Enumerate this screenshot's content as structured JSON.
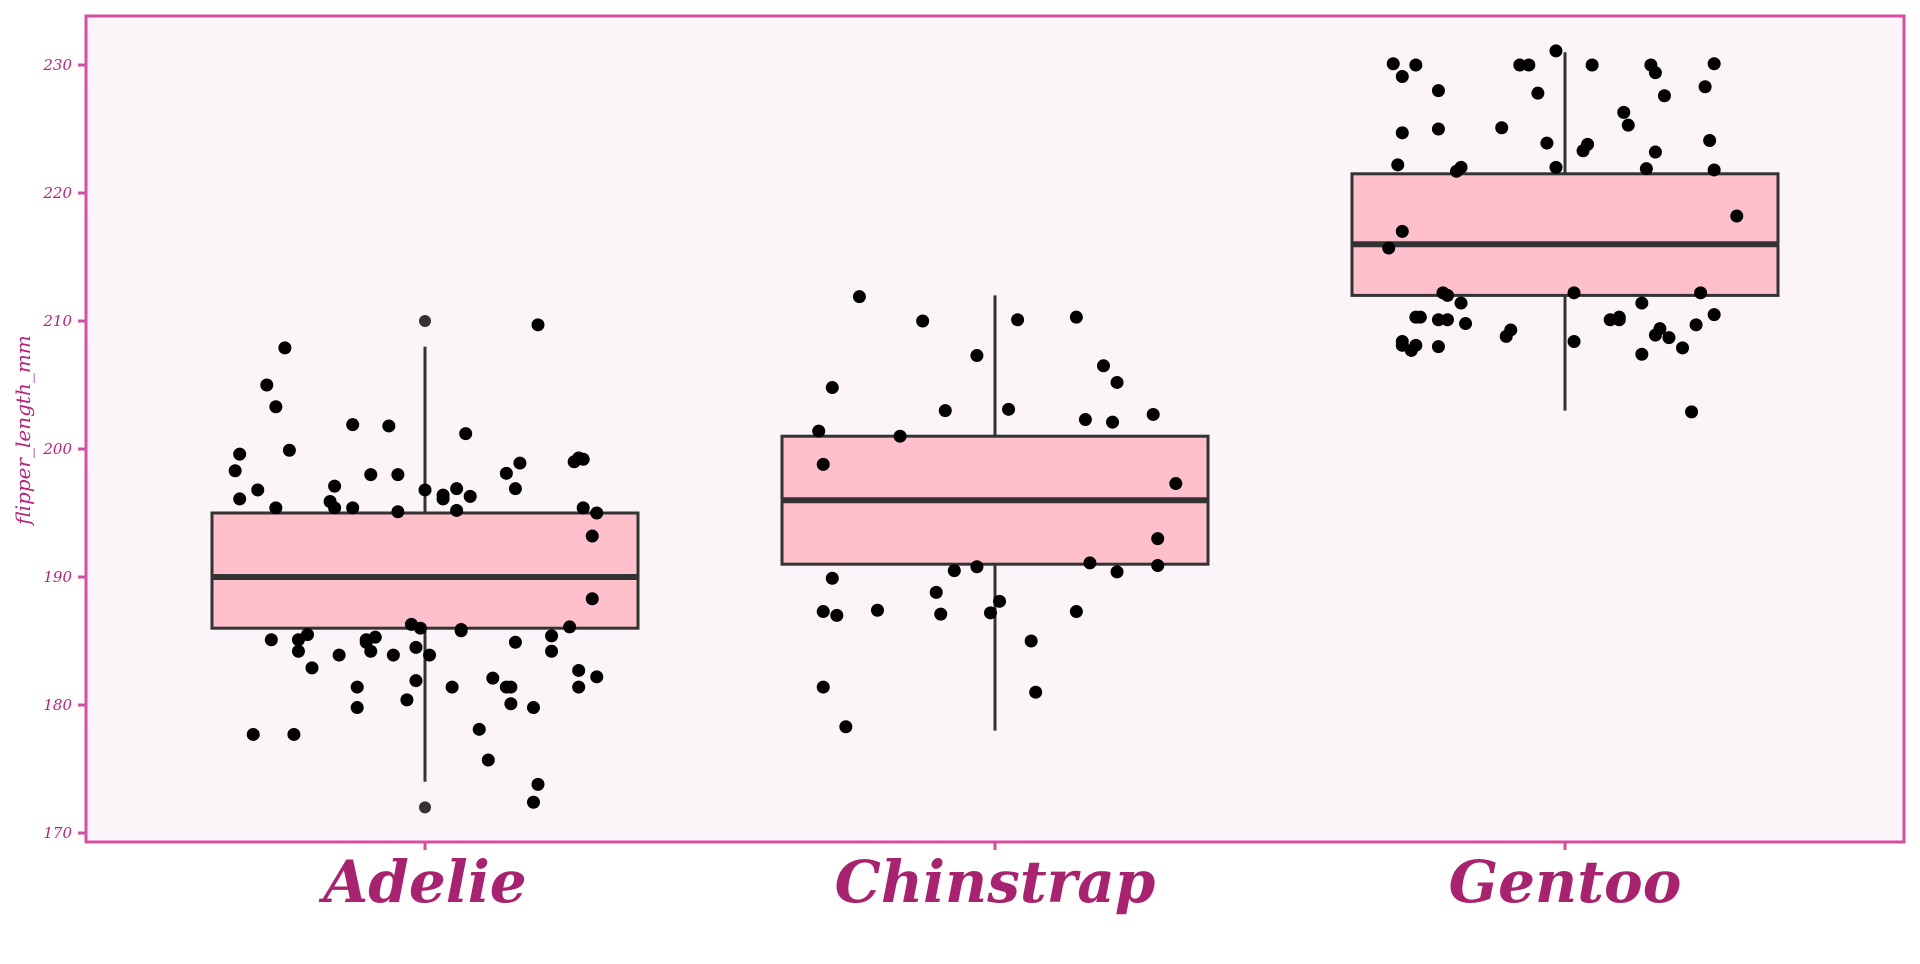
{
  "chart_data": {
    "type": "box",
    "ylabel": "flipper_length_mm",
    "xlabel": "",
    "title": "",
    "ylim": [
      169,
      234
    ],
    "yticks": [
      170,
      180,
      190,
      200,
      210,
      220,
      230
    ],
    "categories": [
      "Adelie",
      "Chinstrap",
      "Gentoo"
    ],
    "grid": false,
    "legend": "none",
    "colors": {
      "background": "#fbf4f9",
      "frame": "#d64ea1",
      "box_fill": "#ffc0cb",
      "box_line": "#333333",
      "points": "#000000",
      "tick_text": "#b5237a",
      "category_text": "#a8236f"
    },
    "boxes": [
      {
        "category": "Adelie",
        "whisker_low": 174,
        "q1": 186,
        "median": 190,
        "q3": 195,
        "whisker_high": 208,
        "outliers": [
          210,
          172
        ]
      },
      {
        "category": "Chinstrap",
        "whisker_low": 178,
        "q1": 191,
        "median": 196,
        "q3": 201,
        "whisker_high": 212,
        "outliers": []
      },
      {
        "category": "Gentoo",
        "whisker_low": 203,
        "q1": 212,
        "median": 216,
        "q3": 221.5,
        "whisker_high": 231,
        "outliers": []
      }
    ],
    "points": {
      "Adelie": [
        [
          -0.42,
          198.3
        ],
        [
          -0.41,
          199.6
        ],
        [
          -0.41,
          196.1
        ],
        [
          -0.38,
          177.7
        ],
        [
          -0.37,
          196.8
        ],
        [
          -0.35,
          205.0
        ],
        [
          -0.34,
          185.1
        ],
        [
          -0.33,
          203.3
        ],
        [
          -0.33,
          195.4
        ],
        [
          -0.31,
          207.9
        ],
        [
          -0.3,
          199.9
        ],
        [
          -0.29,
          177.7
        ],
        [
          -0.28,
          185.1
        ],
        [
          -0.28,
          184.2
        ],
        [
          -0.26,
          185.5
        ],
        [
          -0.25,
          182.9
        ],
        [
          -0.21,
          195.9
        ],
        [
          -0.2,
          197.1
        ],
        [
          -0.2,
          195.4
        ],
        [
          -0.19,
          183.9
        ],
        [
          -0.16,
          195.4
        ],
        [
          -0.16,
          201.9
        ],
        [
          -0.15,
          181.4
        ],
        [
          -0.15,
          179.8
        ],
        [
          -0.13,
          185.1
        ],
        [
          -0.13,
          184.9
        ],
        [
          -0.12,
          198.0
        ],
        [
          -0.12,
          184.2
        ],
        [
          -0.11,
          185.3
        ],
        [
          -0.08,
          201.8
        ],
        [
          -0.07,
          183.9
        ],
        [
          -0.06,
          198.0
        ],
        [
          -0.06,
          195.1
        ],
        [
          -0.04,
          180.4
        ],
        [
          -0.03,
          186.3
        ],
        [
          -0.02,
          181.9
        ],
        [
          -0.02,
          184.5
        ],
        [
          -0.01,
          186.0
        ],
        [
          0.0,
          196.8
        ],
        [
          0.01,
          183.9
        ],
        [
          0.04,
          196.4
        ],
        [
          0.04,
          196.1
        ],
        [
          0.06,
          181.4
        ],
        [
          0.07,
          196.9
        ],
        [
          0.07,
          195.2
        ],
        [
          0.08,
          185.9
        ],
        [
          0.08,
          185.8
        ],
        [
          0.09,
          201.2
        ],
        [
          0.1,
          196.3
        ],
        [
          0.12,
          178.1
        ],
        [
          0.14,
          175.7
        ],
        [
          0.15,
          182.1
        ],
        [
          0.18,
          198.1
        ],
        [
          0.18,
          181.4
        ],
        [
          0.19,
          180.1
        ],
        [
          0.19,
          181.4
        ],
        [
          0.2,
          196.9
        ],
        [
          0.21,
          198.9
        ],
        [
          0.2,
          184.9
        ],
        [
          0.24,
          179.8
        ],
        [
          0.24,
          172.4
        ],
        [
          0.25,
          173.8
        ],
        [
          0.25,
          209.7
        ],
        [
          0.28,
          185.4
        ],
        [
          0.28,
          184.2
        ],
        [
          0.32,
          186.1
        ],
        [
          0.33,
          199.0
        ],
        [
          0.34,
          199.3
        ],
        [
          0.34,
          182.7
        ],
        [
          0.34,
          181.4
        ],
        [
          0.35,
          195.4
        ],
        [
          0.35,
          199.2
        ],
        [
          0.37,
          193.2
        ],
        [
          0.37,
          188.3
        ],
        [
          0.38,
          195.0
        ],
        [
          0.38,
          182.2
        ]
      ],
      "Chinstrap": [
        [
          -0.39,
          201.4
        ],
        [
          -0.38,
          198.8
        ],
        [
          -0.38,
          187.3
        ],
        [
          -0.38,
          181.4
        ],
        [
          -0.36,
          204.8
        ],
        [
          -0.36,
          189.9
        ],
        [
          -0.35,
          187.0
        ],
        [
          -0.33,
          178.3
        ],
        [
          -0.3,
          211.9
        ],
        [
          -0.26,
          187.4
        ],
        [
          -0.21,
          201.0
        ],
        [
          -0.16,
          210.0
        ],
        [
          -0.13,
          188.8
        ],
        [
          -0.12,
          187.1
        ],
        [
          -0.11,
          203.0
        ],
        [
          -0.09,
          190.5
        ],
        [
          -0.04,
          207.3
        ],
        [
          -0.04,
          190.8
        ],
        [
          -0.01,
          187.2
        ],
        [
          0.01,
          188.1
        ],
        [
          0.03,
          203.1
        ],
        [
          0.05,
          210.1
        ],
        [
          0.08,
          185.0
        ],
        [
          0.09,
          181.0
        ],
        [
          0.18,
          210.3
        ],
        [
          0.18,
          187.3
        ],
        [
          0.2,
          202.3
        ],
        [
          0.21,
          191.1
        ],
        [
          0.24,
          206.5
        ],
        [
          0.26,
          202.1
        ],
        [
          0.27,
          205.2
        ],
        [
          0.27,
          190.4
        ],
        [
          0.35,
          202.7
        ],
        [
          0.36,
          193.0
        ],
        [
          0.36,
          190.9
        ],
        [
          0.4,
          197.3
        ]
      ],
      "Gentoo": [
        [
          -0.39,
          215.7
        ],
        [
          -0.38,
          230.1
        ],
        [
          -0.37,
          222.2
        ],
        [
          -0.36,
          217.0
        ],
        [
          -0.36,
          208.1
        ],
        [
          -0.36,
          208.4
        ],
        [
          -0.36,
          224.7
        ],
        [
          -0.36,
          229.1
        ],
        [
          -0.34,
          207.7
        ],
        [
          -0.33,
          210.3
        ],
        [
          -0.33,
          230.0
        ],
        [
          -0.33,
          208.1
        ],
        [
          -0.32,
          210.3
        ],
        [
          -0.28,
          225.0
        ],
        [
          -0.28,
          228.0
        ],
        [
          -0.28,
          208.0
        ],
        [
          -0.28,
          210.1
        ],
        [
          -0.27,
          212.2
        ],
        [
          -0.26,
          212.0
        ],
        [
          -0.26,
          210.1
        ],
        [
          -0.24,
          221.7
        ],
        [
          -0.23,
          222.0
        ],
        [
          -0.23,
          211.4
        ],
        [
          -0.22,
          209.8
        ],
        [
          -0.14,
          225.1
        ],
        [
          -0.13,
          208.8
        ],
        [
          -0.12,
          209.3
        ],
        [
          -0.1,
          230.0
        ],
        [
          -0.08,
          230.0
        ],
        [
          -0.06,
          227.8
        ],
        [
          -0.04,
          223.9
        ],
        [
          -0.02,
          222.0
        ],
        [
          -0.02,
          231.1
        ],
        [
          0.02,
          212.2
        ],
        [
          0.02,
          208.4
        ],
        [
          0.04,
          223.3
        ],
        [
          0.05,
          223.8
        ],
        [
          0.06,
          230.0
        ],
        [
          0.1,
          210.1
        ],
        [
          0.12,
          210.1
        ],
        [
          0.12,
          210.3
        ],
        [
          0.13,
          226.3
        ],
        [
          0.14,
          225.3
        ],
        [
          0.17,
          211.4
        ],
        [
          0.17,
          207.4
        ],
        [
          0.18,
          221.9
        ],
        [
          0.19,
          230.0
        ],
        [
          0.2,
          229.4
        ],
        [
          0.2,
          223.2
        ],
        [
          0.2,
          208.9
        ],
        [
          0.21,
          209.4
        ],
        [
          0.22,
          227.6
        ],
        [
          0.23,
          208.7
        ],
        [
          0.26,
          207.9
        ],
        [
          0.28,
          202.9
        ],
        [
          0.29,
          209.7
        ],
        [
          0.3,
          212.2
        ],
        [
          0.31,
          228.3
        ],
        [
          0.32,
          224.1
        ],
        [
          0.33,
          221.8
        ],
        [
          0.33,
          210.5
        ],
        [
          0.33,
          230.1
        ],
        [
          0.38,
          218.2
        ]
      ]
    }
  }
}
